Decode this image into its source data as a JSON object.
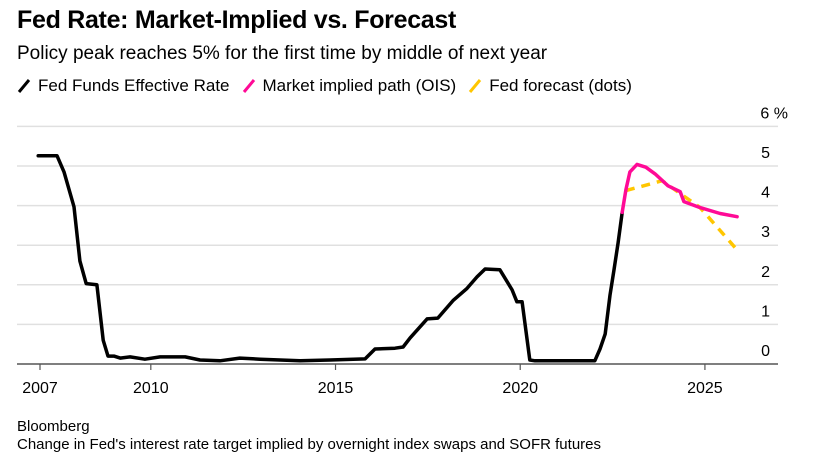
{
  "header": {
    "title": "Fed Rate: Market-Implied vs. Forecast",
    "subtitle": "Policy peak reaches 5% for the first time by middle of next year"
  },
  "legend": [
    {
      "label": "Fed Funds Effective Rate",
      "color": "#000000",
      "icon": "diagonal-line-swatch"
    },
    {
      "label": "Market implied path (OIS)",
      "color": "#ff0a96",
      "icon": "diagonal-line-swatch"
    },
    {
      "label": "Fed forecast (dots)",
      "color": "#ffc600",
      "icon": "diagonal-line-swatch"
    }
  ],
  "footer": {
    "source": "Bloomberg",
    "note": "Change in Fed's interest rate target implied by overnight index swaps and SOFR futures"
  },
  "chart_data": {
    "type": "line",
    "title": "Fed Rate: Market-Implied vs. Forecast",
    "subtitle": "Policy peak reaches 5% for the first time by middle of next year",
    "xlabel": "",
    "ylabel": "%",
    "xlim": [
      2006.4,
      2027.0
    ],
    "ylim": [
      0,
      6
    ],
    "x_ticks": [
      2007,
      2010,
      2015,
      2020,
      2025
    ],
    "x_tick_labels": [
      "2007",
      "2010",
      "2015",
      "2020",
      "2025"
    ],
    "y_ticks": [
      0,
      1,
      2,
      3,
      4,
      5,
      6
    ],
    "y_tick_labels": [
      "0",
      "1",
      "2",
      "3",
      "4",
      "5",
      "6 %"
    ],
    "grid": true,
    "y_axis_side": "right",
    "legend_position": "top-left",
    "series": [
      {
        "name": "Fed Funds Effective Rate",
        "color": "#000000",
        "style": "solid",
        "x": [
          2006.95,
          2007.46,
          2007.65,
          2007.92,
          2008.08,
          2008.25,
          2008.54,
          2008.71,
          2008.84,
          2009.0,
          2009.17,
          2009.44,
          2009.84,
          2010.25,
          2010.93,
          2011.33,
          2011.87,
          2012.41,
          2012.96,
          2013.5,
          2014.04,
          2014.85,
          2015.8,
          2016.07,
          2016.61,
          2016.83,
          2017.02,
          2017.48,
          2017.77,
          2018.18,
          2018.56,
          2018.83,
          2019.05,
          2019.45,
          2019.78,
          2019.91,
          2020.05,
          2020.26,
          2020.4,
          2021.24,
          2022.02,
          2022.16,
          2022.3,
          2022.43,
          2022.54,
          2022.65,
          2022.76
        ],
        "values": [
          5.26,
          5.26,
          4.85,
          3.97,
          2.6,
          2.03,
          2.0,
          0.6,
          0.2,
          0.2,
          0.15,
          0.18,
          0.12,
          0.18,
          0.18,
          0.1,
          0.08,
          0.15,
          0.12,
          0.1,
          0.08,
          0.1,
          0.13,
          0.38,
          0.4,
          0.43,
          0.66,
          1.14,
          1.16,
          1.6,
          1.91,
          2.2,
          2.4,
          2.38,
          1.87,
          1.57,
          1.57,
          0.1,
          0.08,
          0.08,
          0.08,
          0.38,
          0.76,
          1.74,
          2.38,
          3.06,
          3.83
        ]
      },
      {
        "name": "Market implied path (OIS)",
        "color": "#ff0a96",
        "style": "solid",
        "x": [
          2022.76,
          2022.86,
          2022.97,
          2023.16,
          2023.4,
          2023.65,
          2024.0,
          2024.33,
          2024.43,
          2024.87,
          2025.41,
          2025.87
        ],
        "values": [
          3.83,
          4.4,
          4.85,
          5.04,
          4.97,
          4.8,
          4.5,
          4.35,
          4.1,
          3.95,
          3.8,
          3.72
        ]
      },
      {
        "name": "Fed forecast (dots)",
        "color": "#ffc600",
        "style": "dashed",
        "x": [
          2022.86,
          2023.84,
          2024.87,
          2025.89
        ],
        "values": [
          4.38,
          4.63,
          3.95,
          2.86
        ]
      }
    ]
  }
}
